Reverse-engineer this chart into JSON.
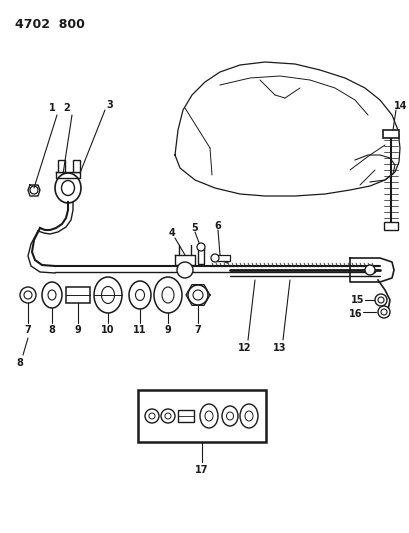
{
  "title": "4702  800",
  "bg_color": "#ffffff",
  "line_color": "#1a1a1a",
  "fig_width": 4.09,
  "fig_height": 5.33,
  "dpi": 100
}
